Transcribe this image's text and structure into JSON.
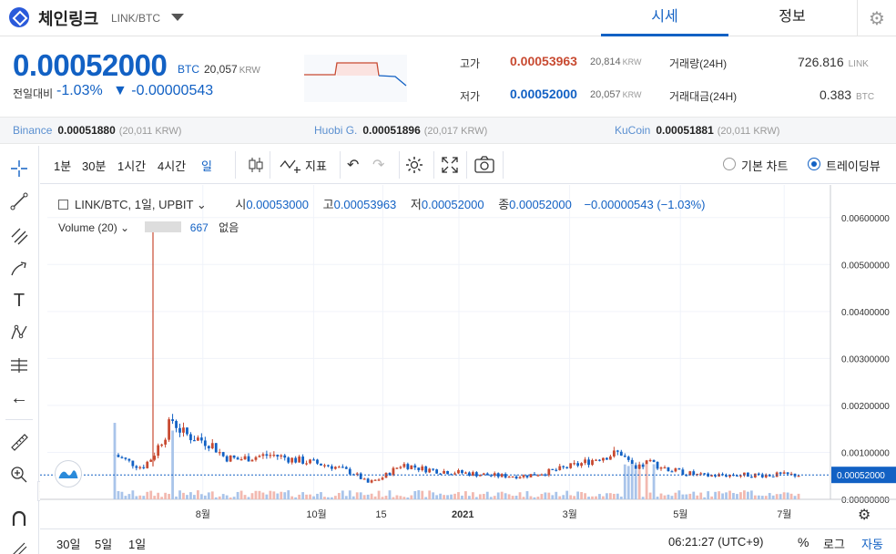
{
  "header": {
    "coin_name": "체인링크",
    "pair": "LINK/BTC",
    "tabs": [
      {
        "label": "시세"
      },
      {
        "label": "정보"
      }
    ]
  },
  "price": {
    "current": "0.00052000",
    "unit": "BTC",
    "krw": "20,057",
    "krw_unit": "KRW",
    "change_label": "전일대비",
    "change_pct": "-1.03%",
    "change_abs": "▼ -0.00000543"
  },
  "stats": {
    "high_label": "고가",
    "high_value": "0.00053963",
    "high_krw": "20,814",
    "low_label": "저가",
    "low_value": "0.00052000",
    "low_krw": "20,057",
    "krw_unit": "KRW",
    "volume_label": "거래량(24H)",
    "volume_value": "726.816",
    "volume_unit": "LINK",
    "amount_label": "거래대금(24H)",
    "amount_value": "0.383",
    "amount_unit": "BTC"
  },
  "exchanges": [
    {
      "name": "Binance",
      "price": "0.00051880",
      "krw": "(20,011 KRW)"
    },
    {
      "name": "Huobi G.",
      "price": "0.00051896",
      "krw": "(20,017 KRW)"
    },
    {
      "name": "KuCoin",
      "price": "0.00051881",
      "krw": "(20,011 KRW)"
    }
  ],
  "toolbar": {
    "intervals": [
      "1분",
      "30분",
      "1시간",
      "4시간",
      "일"
    ],
    "indicator_label": "지표",
    "basic_chart_label": "기본 차트",
    "tradingview_label": "트레이딩뷰",
    "selected_view": "트레이딩뷰"
  },
  "legend": {
    "symbol": "LINK/BTC, 1일, UPBIT",
    "open_label": "시",
    "open": "0.00053000",
    "high_label": "고",
    "high": "0.00053963",
    "low_label": "저",
    "low": "0.00052000",
    "close_label": "종",
    "close": "0.00052000",
    "change": "−0.00000543 (−1.03%)",
    "volume_label": "Volume (20)",
    "volume_value": "667",
    "volume_extra": "없음"
  },
  "chart_data": {
    "type": "candlestick",
    "y_ticks": [
      "0.00600000",
      "0.00500000",
      "0.00400000",
      "0.00300000",
      "0.00200000",
      "0.00100000",
      "0.00000000"
    ],
    "x_ticks": [
      "8월",
      "10월",
      "15",
      "2021",
      "3월",
      "5월",
      "7월"
    ],
    "ylim": [
      0,
      0.0065
    ],
    "last_price": "0.00052000",
    "colors": {
      "up": "#c84a31",
      "down": "#1261c4",
      "grid": "#f0f3fa"
    },
    "price_path": [
      [
        0,
        0.00095
      ],
      [
        0.02,
        0.0008
      ],
      [
        0.04,
        0.00068
      ],
      [
        0.055,
        0.0009
      ],
      [
        0.07,
        0.0013
      ],
      [
        0.085,
        0.0017
      ],
      [
        0.1,
        0.0014
      ],
      [
        0.12,
        0.0013
      ],
      [
        0.14,
        0.0012
      ],
      [
        0.16,
        0.0009
      ],
      [
        0.18,
        0.00085
      ],
      [
        0.2,
        0.0009
      ],
      [
        0.23,
        0.00095
      ],
      [
        0.26,
        0.00085
      ],
      [
        0.29,
        0.00078
      ],
      [
        0.32,
        0.0007
      ],
      [
        0.35,
        0.00055
      ],
      [
        0.37,
        0.00035
      ],
      [
        0.39,
        0.00045
      ],
      [
        0.42,
        0.00075
      ],
      [
        0.45,
        0.00065
      ],
      [
        0.48,
        0.0006
      ],
      [
        0.52,
        0.00055
      ],
      [
        0.56,
        0.0005
      ],
      [
        0.6,
        0.0005
      ],
      [
        0.64,
        0.0006
      ],
      [
        0.68,
        0.00075
      ],
      [
        0.71,
        0.0009
      ],
      [
        0.74,
        0.001
      ],
      [
        0.76,
        0.0006
      ],
      [
        0.78,
        0.0008
      ],
      [
        0.82,
        0.0006
      ],
      [
        0.86,
        0.0005
      ],
      [
        0.9,
        0.00052
      ],
      [
        1.0,
        0.00052
      ]
    ]
  },
  "bottom": {
    "ranges": [
      "30일",
      "5일",
      "1일"
    ],
    "time": "06:21:27 (UTC+9)",
    "percent_label": "%",
    "log_label": "로그",
    "auto_label": "자동"
  }
}
